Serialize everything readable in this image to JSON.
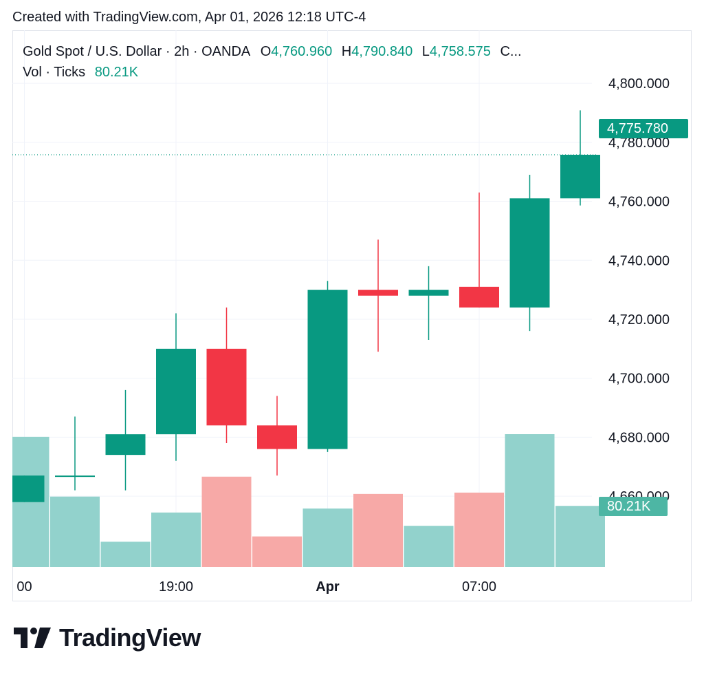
{
  "header": {
    "created_text": "Created with TradingView.com, Apr 01, 2026 12:18 UTC-4"
  },
  "legend": {
    "symbol": "Gold Spot / U.S. Dollar · 2h · OANDA",
    "o_label": "O",
    "o_value": "4,760.960",
    "h_label": "H",
    "h_value": "4,790.840",
    "l_label": "L",
    "l_value": "4,758.575",
    "c_label": "C...",
    "vol_label": "Vol · Ticks",
    "vol_value": "80.21K"
  },
  "price_tag": "4,775.780",
  "volume_tag": "80.21K",
  "logo_text": "TradingView",
  "colors": {
    "up": "#089981",
    "down": "#f23645",
    "up_volume": "#92d2cc",
    "down_volume": "#f7a9a7",
    "grid": "#f0f3fa"
  },
  "chart_data": {
    "type": "candlestick",
    "y_ticks": [
      "4,660.000",
      "4,680.000",
      "4,700.000",
      "4,720.000",
      "4,740.000",
      "4,760.000",
      "4,780.000",
      "4,800.000"
    ],
    "y_tick_values": [
      4660,
      4680,
      4700,
      4720,
      4740,
      4760,
      4780,
      4800
    ],
    "ylim": [
      4636,
      4818
    ],
    "x_ticks": [
      "00",
      "19:00",
      "Apr",
      "07:00"
    ],
    "x_tick_index": [
      0,
      3,
      6,
      9
    ],
    "last_price": 4775.78,
    "last_volume": "80.21K",
    "candles": [
      {
        "o": 4658,
        "h": 4667,
        "l": 4658,
        "c": 4667
      },
      {
        "o": 4667,
        "h": 4687,
        "l": 4662,
        "c": 4667
      },
      {
        "o": 4674,
        "h": 4696,
        "l": 4662,
        "c": 4681
      },
      {
        "o": 4681,
        "h": 4722,
        "l": 4672,
        "c": 4710
      },
      {
        "o": 4710,
        "h": 4724,
        "l": 4678,
        "c": 4684
      },
      {
        "o": 4684,
        "h": 4694,
        "l": 4667,
        "c": 4676
      },
      {
        "o": 4676,
        "h": 4733,
        "l": 4675,
        "c": 4730
      },
      {
        "o": 4730,
        "h": 4747,
        "l": 4709,
        "c": 4728
      },
      {
        "o": 4728,
        "h": 4738,
        "l": 4713,
        "c": 4730
      },
      {
        "o": 4731,
        "h": 4763,
        "l": 4724,
        "c": 4724
      },
      {
        "o": 4724,
        "h": 4769,
        "l": 4716,
        "c": 4761
      },
      {
        "o": 4761,
        "h": 4790.84,
        "l": 4758.575,
        "c": 4775.78
      }
    ],
    "volume_ratios": [
      0.98,
      0.53,
      0.19,
      0.41,
      0.68,
      0.23,
      0.44,
      0.55,
      0.31,
      0.56,
      1.0,
      0.46
    ]
  }
}
